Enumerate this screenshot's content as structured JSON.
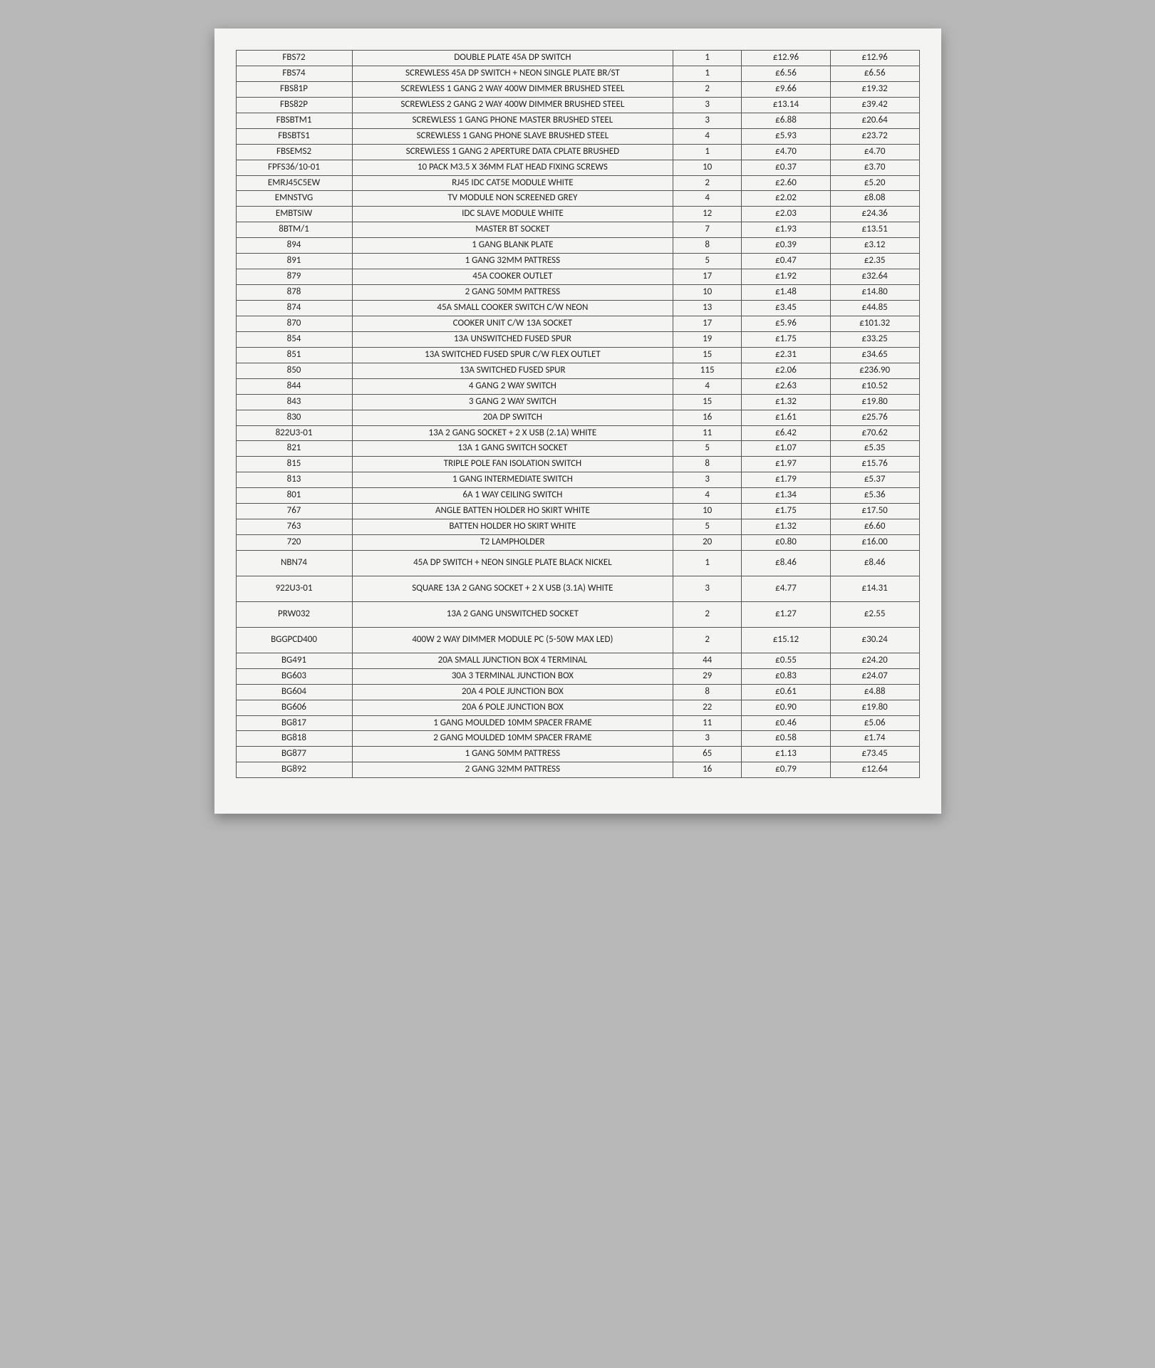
{
  "table": {
    "type": "table",
    "columns": [
      "code",
      "description",
      "qty",
      "unit_price",
      "line_total"
    ],
    "col_widths_pct": [
      17,
      47,
      10,
      13,
      13
    ],
    "border_color": "#555555",
    "text_color": "#222222",
    "background_color": "#f4f4f2",
    "font_family": "Calibri",
    "font_size_pt": 10,
    "currency_symbol": "£",
    "rows": [
      {
        "code": "FBS72",
        "desc": "DOUBLE PLATE 45A DP SWITCH",
        "qty": "1",
        "price": "£12.96",
        "total": "£12.96"
      },
      {
        "code": "FBS74",
        "desc": "SCREWLESS 45A DP SWITCH + NEON SINGLE PLATE BR/ST",
        "qty": "1",
        "price": "£6.56",
        "total": "£6.56"
      },
      {
        "code": "FBS81P",
        "desc": "SCREWLESS 1 GANG 2 WAY 400W DIMMER BRUSHED STEEL",
        "qty": "2",
        "price": "£9.66",
        "total": "£19.32"
      },
      {
        "code": "FBS82P",
        "desc": "SCREWLESS 2 GANG 2 WAY 400W DIMMER BRUSHED STEEL",
        "qty": "3",
        "price": "£13.14",
        "total": "£39.42"
      },
      {
        "code": "FBSBTM1",
        "desc": "SCREWLESS 1 GANG PHONE MASTER BRUSHED STEEL",
        "qty": "3",
        "price": "£6.88",
        "total": "£20.64"
      },
      {
        "code": "FBSBTS1",
        "desc": "SCREWLESS 1 GANG PHONE SLAVE BRUSHED STEEL",
        "qty": "4",
        "price": "£5.93",
        "total": "£23.72"
      },
      {
        "code": "FBSEMS2",
        "desc": "SCREWLESS 1 GANG 2 APERTURE DATA CPLATE BRUSHED",
        "qty": "1",
        "price": "£4.70",
        "total": "£4.70"
      },
      {
        "code": "FPFS36/10-01",
        "desc": "10 PACK M3.5 X 36MM FLAT HEAD FIXING SCREWS",
        "qty": "10",
        "price": "£0.37",
        "total": "£3.70"
      },
      {
        "code": "EMRJ45C5EW",
        "desc": "RJ45 IDC CAT5E MODULE WHITE",
        "qty": "2",
        "price": "£2.60",
        "total": "£5.20"
      },
      {
        "code": "EMNSTVG",
        "desc": "TV MODULE NON SCREENED GREY",
        "qty": "4",
        "price": "£2.02",
        "total": "£8.08"
      },
      {
        "code": "EMBTSIW",
        "desc": "IDC SLAVE MODULE WHITE",
        "qty": "12",
        "price": "£2.03",
        "total": "£24.36"
      },
      {
        "code": "8BTM/1",
        "desc": "MASTER BT SOCKET",
        "qty": "7",
        "price": "£1.93",
        "total": "£13.51"
      },
      {
        "code": "894",
        "desc": "1 GANG BLANK PLATE",
        "qty": "8",
        "price": "£0.39",
        "total": "£3.12"
      },
      {
        "code": "891",
        "desc": "1 GANG 32MM PATTRESS",
        "qty": "5",
        "price": "£0.47",
        "total": "£2.35"
      },
      {
        "code": "879",
        "desc": "45A COOKER OUTLET",
        "qty": "17",
        "price": "£1.92",
        "total": "£32.64"
      },
      {
        "code": "878",
        "desc": "2 GANG 50MM PATTRESS",
        "qty": "10",
        "price": "£1.48",
        "total": "£14.80"
      },
      {
        "code": "874",
        "desc": "45A SMALL COOKER SWITCH C/W NEON",
        "qty": "13",
        "price": "£3.45",
        "total": "£44.85"
      },
      {
        "code": "870",
        "desc": "COOKER UNIT C/W 13A SOCKET",
        "qty": "17",
        "price": "£5.96",
        "total": "£101.32"
      },
      {
        "code": "854",
        "desc": "13A UNSWITCHED FUSED SPUR",
        "qty": "19",
        "price": "£1.75",
        "total": "£33.25"
      },
      {
        "code": "851",
        "desc": "13A SWITCHED FUSED SPUR C/W FLEX OUTLET",
        "qty": "15",
        "price": "£2.31",
        "total": "£34.65"
      },
      {
        "code": "850",
        "desc": "13A SWITCHED FUSED SPUR",
        "qty": "115",
        "price": "£2.06",
        "total": "£236.90"
      },
      {
        "code": "844",
        "desc": "4 GANG 2 WAY SWITCH",
        "qty": "4",
        "price": "£2.63",
        "total": "£10.52"
      },
      {
        "code": "843",
        "desc": "3 GANG 2 WAY SWITCH",
        "qty": "15",
        "price": "£1.32",
        "total": "£19.80"
      },
      {
        "code": "830",
        "desc": "20A DP SWITCH",
        "qty": "16",
        "price": "£1.61",
        "total": "£25.76"
      },
      {
        "code": "822U3-01",
        "desc": "13A 2 GANG SOCKET + 2 X USB (2.1A) WHITE",
        "qty": "11",
        "price": "£6.42",
        "total": "£70.62"
      },
      {
        "code": "821",
        "desc": "13A 1 GANG SWITCH SOCKET",
        "qty": "5",
        "price": "£1.07",
        "total": "£5.35"
      },
      {
        "code": "815",
        "desc": "TRIPLE POLE FAN ISOLATION SWITCH",
        "qty": "8",
        "price": "£1.97",
        "total": "£15.76"
      },
      {
        "code": "813",
        "desc": "1 GANG INTERMEDIATE SWITCH",
        "qty": "3",
        "price": "£1.79",
        "total": "£5.37"
      },
      {
        "code": "801",
        "desc": "6A 1 WAY CEILING SWITCH",
        "qty": "4",
        "price": "£1.34",
        "total": "£5.36"
      },
      {
        "code": "767",
        "desc": "ANGLE BATTEN HOLDER HO SKIRT WHITE",
        "qty": "10",
        "price": "£1.75",
        "total": "£17.50"
      },
      {
        "code": "763",
        "desc": "BATTEN HOLDER HO SKIRT WHITE",
        "qty": "5",
        "price": "£1.32",
        "total": "£6.60"
      },
      {
        "code": "720",
        "desc": "T2 LAMPHOLDER",
        "qty": "20",
        "price": "£0.80",
        "total": "£16.00"
      },
      {
        "code": "NBN74",
        "desc": "45A DP SWITCH + NEON SINGLE PLATE BLACK NICKEL",
        "qty": "1",
        "price": "£8.46",
        "total": "£8.46",
        "tall": true
      },
      {
        "code": "922U3-01",
        "desc": "SQUARE 13A 2 GANG SOCKET + 2 X USB (3.1A) WHITE",
        "qty": "3",
        "price": "£4.77",
        "total": "£14.31",
        "tall": true
      },
      {
        "code": "PRW032",
        "desc": "13A 2 GANG UNSWITCHED SOCKET",
        "qty": "2",
        "price": "£1.27",
        "total": "£2.55",
        "tall": true
      },
      {
        "code": "BGGPCD400",
        "desc": "400W 2 WAY DIMMER MODULE PC (5-50W MAX LED)",
        "qty": "2",
        "price": "£15.12",
        "total": "£30.24",
        "tall": true
      },
      {
        "code": "BG491",
        "desc": "20A SMALL JUNCTION BOX 4 TERMINAL",
        "qty": "44",
        "price": "£0.55",
        "total": "£24.20"
      },
      {
        "code": "BG603",
        "desc": "30A 3 TERMINAL JUNCTION BOX",
        "qty": "29",
        "price": "£0.83",
        "total": "£24.07"
      },
      {
        "code": "BG604",
        "desc": "20A 4 POLE JUNCTION BOX",
        "qty": "8",
        "price": "£0.61",
        "total": "£4.88"
      },
      {
        "code": "BG606",
        "desc": "20A 6 POLE JUNCTION BOX",
        "qty": "22",
        "price": "£0.90",
        "total": "£19.80"
      },
      {
        "code": "BG817",
        "desc": "1 GANG MOULDED 10MM SPACER FRAME",
        "qty": "11",
        "price": "£0.46",
        "total": "£5.06"
      },
      {
        "code": "BG818",
        "desc": "2 GANG MOULDED 10MM SPACER FRAME",
        "qty": "3",
        "price": "£0.58",
        "total": "£1.74"
      },
      {
        "code": "BG877",
        "desc": "1 GANG 50MM PATTRESS",
        "qty": "65",
        "price": "£1.13",
        "total": "£73.45"
      },
      {
        "code": "BG892",
        "desc": "2 GANG 32MM PATTRESS",
        "qty": "16",
        "price": "£0.79",
        "total": "£12.64"
      }
    ]
  }
}
